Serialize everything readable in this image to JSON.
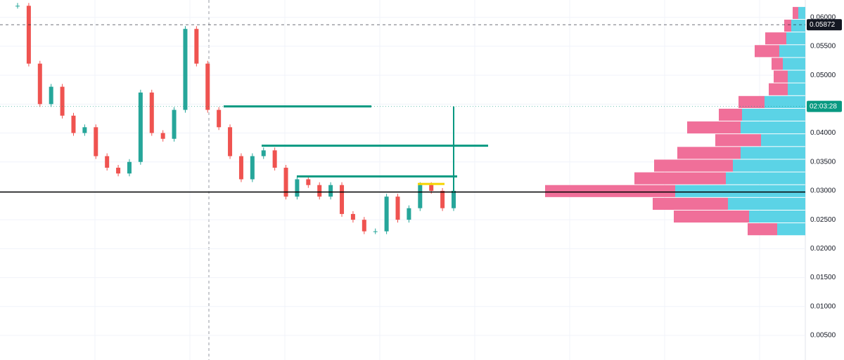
{
  "chart_data": {
    "type": "candlestick",
    "values": [
      0.062,
      0.052,
      0.045,
      0.048,
      0.043,
      0.04,
      0.041,
      0.036,
      0.034,
      0.033,
      0.035,
      0.047,
      0.04,
      0.039,
      0.044,
      0.058,
      0.052,
      0.044,
      0.041,
      0.036,
      0.032,
      0.036,
      0.037,
      0.034,
      0.029,
      0.032,
      0.031,
      0.029,
      0.031,
      0.026,
      0.025,
      0.023,
      0.023,
      0.029,
      0.025,
      0.027,
      0.031,
      0.03,
      0.027,
      0.03
    ],
    "up_color": "#26a69a",
    "down_color": "#ef5350",
    "ylim": [
      0.00075,
      0.063
    ],
    "yticks": [
      {
        "value": 0.005,
        "label": "0.00500"
      },
      {
        "value": 0.01,
        "label": "0.01000"
      },
      {
        "value": 0.015,
        "label": "0.01500"
      },
      {
        "value": 0.02,
        "label": "0.02000"
      },
      {
        "value": 0.025,
        "label": "0.02500"
      },
      {
        "value": 0.03,
        "label": "0.03000"
      },
      {
        "value": 0.035,
        "label": "0.03500"
      },
      {
        "value": 0.04,
        "label": "0.04000"
      },
      {
        "value": 0.045,
        "label": "0.04500"
      },
      {
        "value": 0.05,
        "label": "0.05000"
      },
      {
        "value": 0.055,
        "label": "0.05500"
      },
      {
        "value": 0.06,
        "label": "0.06000"
      }
    ],
    "grid": true,
    "levels": [
      {
        "value": 0.0446,
        "color": "#089981"
      },
      {
        "value": 0.0378,
        "color": "#089981"
      },
      {
        "value": 0.0325,
        "color": "#089981"
      },
      {
        "value": 0.0298,
        "color": "#000000"
      },
      {
        "value": 0.0312,
        "color": "#f5d300"
      }
    ],
    "price_markers": [
      {
        "value": 0.05872,
        "label": "0.05872",
        "color": "#131722"
      },
      {
        "value": 0.0446,
        "label": "02:03:28",
        "color": "#089981"
      }
    ],
    "profile_bins": [
      0.0222,
      0.0244,
      0.0266,
      0.0288,
      0.031,
      0.0332,
      0.0354,
      0.0376,
      0.0398,
      0.042,
      0.0442,
      0.0464,
      0.0486,
      0.0508,
      0.053,
      0.0552,
      0.0574,
      0.0596,
      0.0618
    ],
    "profile_sell": [
      42,
      107,
      107,
      185,
      130,
      112,
      90,
      65,
      76,
      33,
      37,
      27,
      20,
      16,
      35,
      30,
      10,
      8
    ],
    "profile_buy": [
      40,
      80,
      110,
      185,
      113,
      103,
      92,
      63,
      92,
      90,
      58,
      25,
      25,
      32,
      37,
      27,
      20,
      10
    ],
    "sell_color": "#f06f99",
    "buy_color": "#5bd3e6"
  }
}
